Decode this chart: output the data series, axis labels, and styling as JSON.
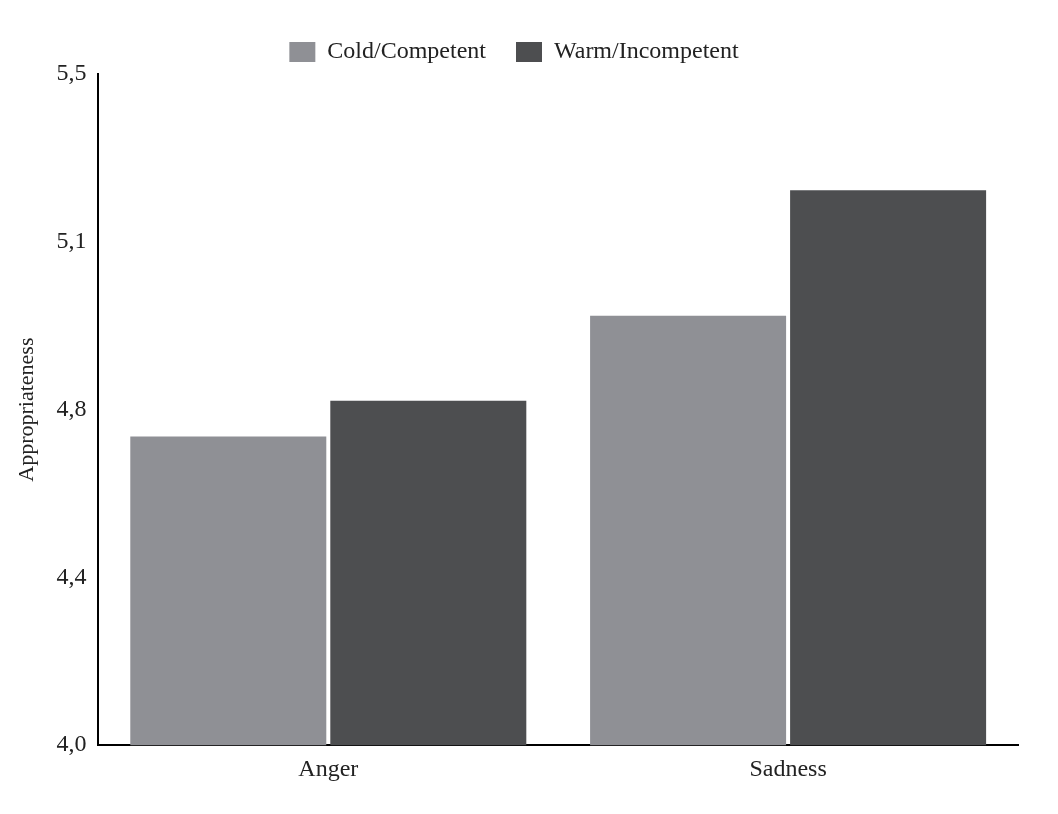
{
  "chart_data": {
    "type": "bar",
    "ylabel": "Appropriateness",
    "categories": [
      "Anger",
      "Sadness"
    ],
    "series": [
      {
        "name": "Cold/Competent",
        "color": "#8f9095",
        "values": [
          4.69,
          4.96
        ]
      },
      {
        "name": "Warm/Incompetent",
        "color": "#4d4e50",
        "values": [
          4.77,
          5.24
        ]
      }
    ],
    "ylim": [
      4,
      5.5
    ],
    "yticks": [
      {
        "value": 4,
        "label": "4,0"
      },
      {
        "value": 4.375,
        "label": "4,4"
      },
      {
        "value": 4.75,
        "label": "4,8"
      },
      {
        "value": 5.125,
        "label": "5,1"
      },
      {
        "value": 5.5,
        "label": "5,5"
      }
    ],
    "grid": false,
    "legend": "top"
  }
}
